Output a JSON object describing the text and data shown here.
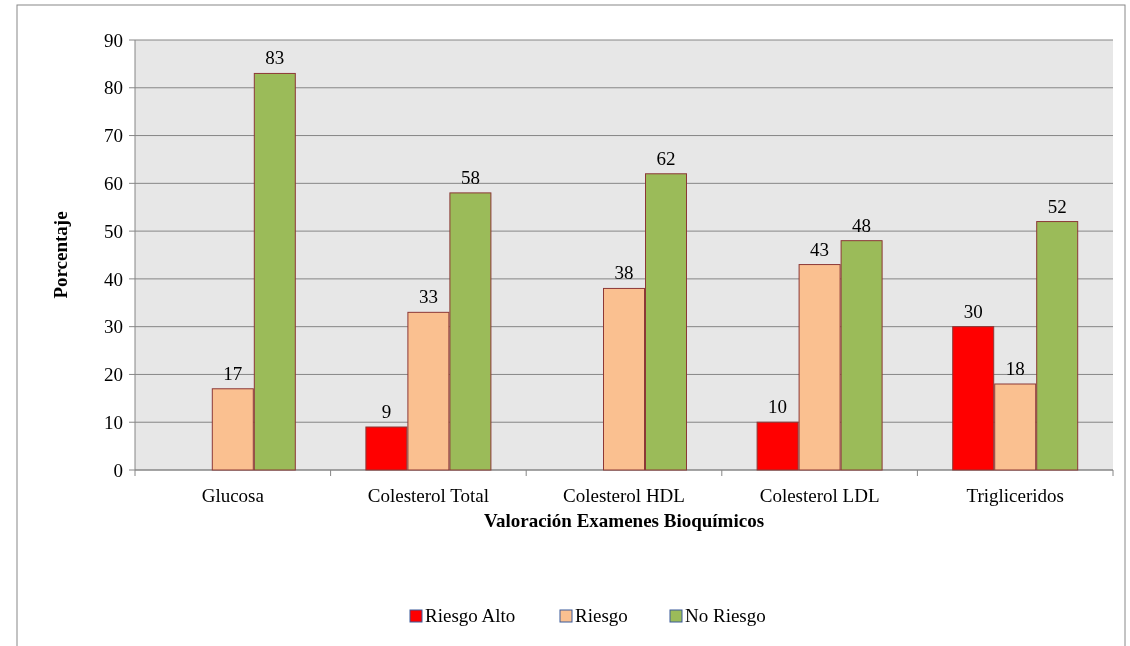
{
  "chart_data": {
    "type": "bar",
    "xlabel": "Valoración Examenes Bioquímicos",
    "ylabel": "Porcentaje",
    "categories": [
      "Glucosa",
      "Colesterol Total",
      "Colesterol HDL",
      "Colesterol LDL",
      "Trigliceridos"
    ],
    "series": [
      {
        "name": "Riesgo Alto",
        "color": "#ff0000",
        "values": [
          null,
          9,
          null,
          10,
          30
        ]
      },
      {
        "name": "Riesgo",
        "color": "#fac090",
        "values": [
          17,
          33,
          38,
          43,
          18
        ]
      },
      {
        "name": "No Riesgo",
        "color": "#9bbb59",
        "values": [
          83,
          58,
          62,
          48,
          52
        ]
      }
    ],
    "ylim": [
      0,
      90
    ],
    "yticks": [
      0,
      10,
      20,
      30,
      40,
      50,
      60,
      70,
      80,
      90
    ],
    "grid": "y",
    "legend": "bottom",
    "data_labels": true
  }
}
